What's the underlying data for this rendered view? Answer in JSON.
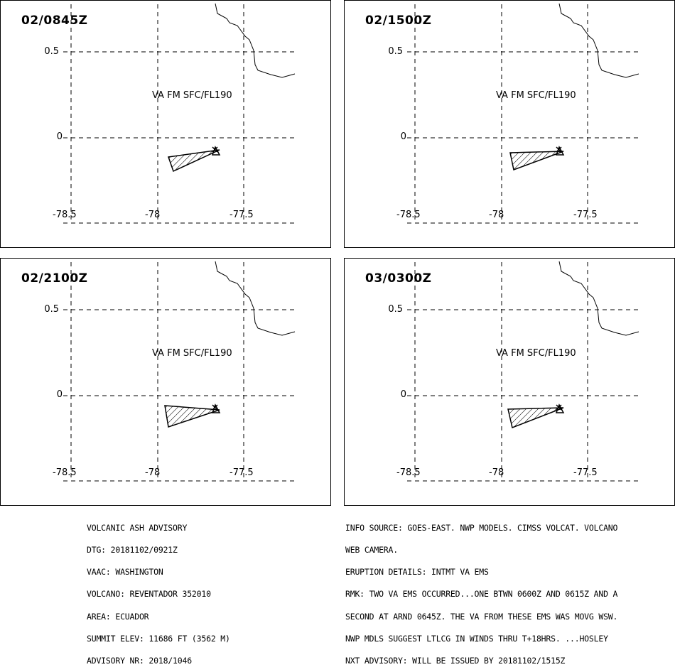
{
  "panels": [
    {
      "time": "02/0845Z",
      "label": "VA FM SFC/FL190"
    },
    {
      "time": "02/1500Z",
      "label": "VA FM SFC/FL190"
    },
    {
      "time": "02/2100Z",
      "label": "VA FM SFC/FL190"
    },
    {
      "time": "03/0300Z",
      "label": "VA FM SFC/FL190"
    }
  ],
  "axis": {
    "lat_ticks": [
      "0.5",
      "0"
    ],
    "lon_ticks": [
      "-78.5",
      "-78",
      "-77.5"
    ]
  },
  "colors": {
    "ink": "#000000",
    "background": "#ffffff"
  },
  "advisory_left": [
    "VOLCANIC ASH ADVISORY",
    "DTG: 20181102/0921Z",
    "VAAC: WASHINGTON",
    "VOLCANO: REVENTADOR 352010",
    "AREA: ECUADOR",
    "SUMMIT ELEV: 11686 FT (3562 M)",
    "ADVISORY NR: 2018/1046"
  ],
  "advisory_right": [
    "INFO SOURCE: GOES-EAST. NWP MODELS. CIMSS VOLCAT. VOLCANO",
    "WEB CAMERA.",
    "ERUPTION DETAILS: INTMT VA EMS",
    "RMK: TWO VA EMS OCCURRED...ONE BTWN 0600Z AND 0615Z AND A",
    "SECOND AT ARND 0645Z. THE VA FROM THESE EMS WAS MOVG WSW.",
    "NWP MDLS SUGGEST LTLCG IN WINDS THRU T+18HRS. ...HOSLEY",
    "NXT ADVISORY: WILL BE ISSUED BY 20181102/1515Z"
  ]
}
